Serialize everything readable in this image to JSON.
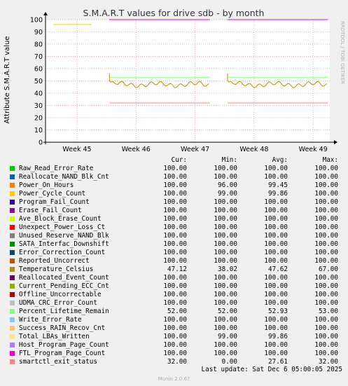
{
  "title": "S.M.A.R.T values for drive sdb - by month",
  "ylabel": "Attribute S.M.A.R.T value",
  "side_label": "RRDTOOL / TOBI OETIKER",
  "footer": "Munin 2.0.67",
  "last_update": "Last update: Sat Dec  6 05:00:05 2025",
  "legend_headers": {
    "cur": "Cur:",
    "min": "Min:",
    "avg": "Avg:",
    "max": "Max:"
  },
  "chart_data": {
    "type": "line",
    "title": "S.M.A.R.T values for drive sdb - by month",
    "ylabel": "Attribute S.M.A.R.T value",
    "ylim": [
      0,
      100
    ],
    "yticks": [
      0,
      10,
      20,
      30,
      40,
      50,
      60,
      70,
      80,
      90,
      100
    ],
    "xticks": [
      "Week 45",
      "Week 46",
      "Week 47",
      "Week 48",
      "Week 49"
    ],
    "grid": true,
    "segments": [
      {
        "from_week": 44.6,
        "to_week": 45.25
      },
      {
        "from_week": 45.55,
        "to_week": 47.25
      },
      {
        "from_week": 47.55,
        "to_week": 49.25
      }
    ],
    "series": [
      {
        "name": "Raw_Read_Error_Rate",
        "color": "#00cc00",
        "cur": "100.00",
        "min": "100.00",
        "avg": "100.00",
        "max": "100.00",
        "level": 100
      },
      {
        "name": "Reallocate_NAND_Blk_Cnt",
        "color": "#0066b3",
        "cur": "100.00",
        "min": "100.00",
        "avg": "100.00",
        "max": "100.00",
        "level": 100
      },
      {
        "name": "Power_On_Hours",
        "color": "#ff8000",
        "cur": "100.00",
        "min": "96.00",
        "avg": "99.45",
        "max": "100.00",
        "level": 100
      },
      {
        "name": "Power_Cycle_Count",
        "color": "#ffcc00",
        "cur": "100.00",
        "min": "99.00",
        "avg": "99.86",
        "max": "100.00",
        "level": 100
      },
      {
        "name": "Program_Fail_Count",
        "color": "#330099",
        "cur": "100.00",
        "min": "100.00",
        "avg": "100.00",
        "max": "100.00",
        "level": 100
      },
      {
        "name": "Erase_Fail_Count",
        "color": "#990099",
        "cur": "100.00",
        "min": "100.00",
        "avg": "100.00",
        "max": "100.00",
        "level": 100
      },
      {
        "name": "Ave_Block_Erase_Count",
        "color": "#ccff00",
        "cur": "100.00",
        "min": "100.00",
        "avg": "100.00",
        "max": "100.00",
        "level": 100
      },
      {
        "name": "Unexpect_Power_Loss_Ct",
        "color": "#ff0000",
        "cur": "100.00",
        "min": "100.00",
        "avg": "100.00",
        "max": "100.00",
        "level": 100
      },
      {
        "name": "Unused_Reserve_NAND_Blk",
        "color": "#808080",
        "cur": "100.00",
        "min": "100.00",
        "avg": "100.00",
        "max": "100.00",
        "level": 100
      },
      {
        "name": "SATA_Interfac_Downshift",
        "color": "#008f00",
        "cur": "100.00",
        "min": "100.00",
        "avg": "100.00",
        "max": "100.00",
        "level": 100
      },
      {
        "name": "Error_Correction_Count",
        "color": "#00487d",
        "cur": "100.00",
        "min": "100.00",
        "avg": "100.00",
        "max": "100.00",
        "level": 100
      },
      {
        "name": "Reported_Uncorrect",
        "color": "#b35a00",
        "cur": "100.00",
        "min": "100.00",
        "avg": "100.00",
        "max": "100.00",
        "level": 100
      },
      {
        "name": "Temperature_Celsius",
        "color": "#b38f00",
        "cur": "47.12",
        "min": "38.02",
        "avg": "47.62",
        "max": "67.00",
        "level": 47.6
      },
      {
        "name": "Reallocated_Event_Count",
        "color": "#6b006b",
        "cur": "100.00",
        "min": "100.00",
        "avg": "100.00",
        "max": "100.00",
        "level": 100
      },
      {
        "name": "Current_Pending_ECC_Cnt",
        "color": "#8fb300",
        "cur": "100.00",
        "min": "100.00",
        "avg": "100.00",
        "max": "100.00",
        "level": 100
      },
      {
        "name": "Offline_Uncorrectable",
        "color": "#b30000",
        "cur": "100.00",
        "min": "100.00",
        "avg": "100.00",
        "max": "100.00",
        "level": 100
      },
      {
        "name": "UDMA_CRC_Error_Count",
        "color": "#bebebe",
        "cur": "100.00",
        "min": "100.00",
        "avg": "100.00",
        "max": "100.00",
        "level": 100
      },
      {
        "name": "Percent_Lifetime_Remain",
        "color": "#80ff80",
        "cur": "52.00",
        "min": "52.00",
        "avg": "52.93",
        "max": "53.00",
        "level": 53
      },
      {
        "name": "Write_Error_Rate",
        "color": "#80c9ff",
        "cur": "100.00",
        "min": "100.00",
        "avg": "100.00",
        "max": "100.00",
        "level": 100
      },
      {
        "name": "Success_RAIN_Recov_Cnt",
        "color": "#ffc080",
        "cur": "100.00",
        "min": "100.00",
        "avg": "100.00",
        "max": "100.00",
        "level": 100
      },
      {
        "name": "Total_LBAs_Written",
        "color": "#ffe680",
        "cur": "100.00",
        "min": "99.00",
        "avg": "99.86",
        "max": "100.00",
        "level": 100
      },
      {
        "name": "Host_Program_Page_Count",
        "color": "#aa80ff",
        "cur": "100.00",
        "min": "100.00",
        "avg": "100.00",
        "max": "100.00",
        "level": 100
      },
      {
        "name": "FTL_Program_Page_Count",
        "color": "#ee00cc",
        "cur": "100.00",
        "min": "100.00",
        "avg": "100.00",
        "max": "100.00",
        "level": 100
      },
      {
        "name": "smartctl_exit_status",
        "color": "#ff8080",
        "cur": "32.00",
        "min": "0.00",
        "avg": "27.61",
        "max": "32.00",
        "level": 32
      }
    ]
  }
}
